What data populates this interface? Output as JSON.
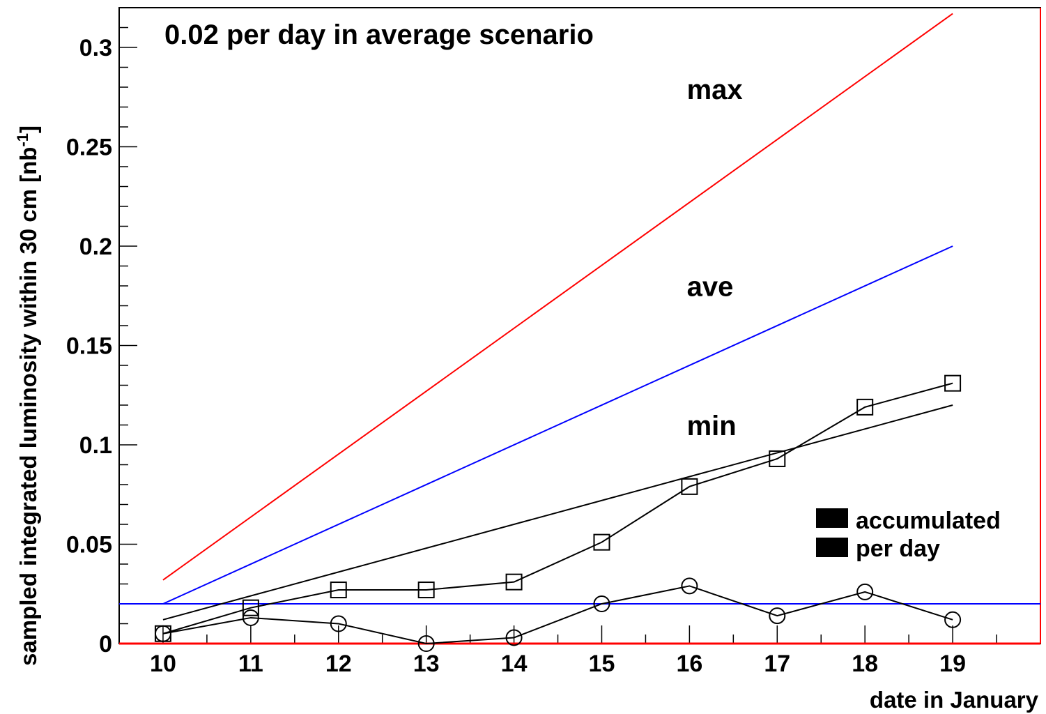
{
  "chart_data": {
    "type": "line",
    "title": "0.02 per day in average scenario",
    "xlabel": "date in January",
    "ylabel": "sampled integrated luminosity within 30 cm [nb",
    "ylabel_sup": "-1",
    "ylabel_close": "]",
    "xlim": [
      9.5,
      20.0
    ],
    "ylim": [
      0,
      0.32
    ],
    "x_ticks": [
      10,
      11,
      12,
      13,
      14,
      15,
      16,
      17,
      18,
      19
    ],
    "y_ticks": [
      0,
      0.05,
      0.1,
      0.15,
      0.2,
      0.25,
      0.3
    ],
    "y_tick_labels": [
      "0",
      "0.05",
      "0.1",
      "0.15",
      "0.2",
      "0.25",
      "0.3"
    ],
    "grid": false,
    "series": [
      {
        "name": "max",
        "color": "#ff0000",
        "x": [
          10,
          19
        ],
        "y": [
          0.032,
          0.317
        ]
      },
      {
        "name": "ave",
        "color": "#0000ff",
        "x": [
          10,
          19
        ],
        "y": [
          0.02,
          0.2
        ]
      },
      {
        "name": "min",
        "color": "#000000",
        "x": [
          10,
          19
        ],
        "y": [
          0.012,
          0.12
        ]
      },
      {
        "name": "accumulated",
        "color": "#000000",
        "marker": "square",
        "x": [
          10,
          11,
          12,
          13,
          14,
          15,
          16,
          17,
          18,
          19
        ],
        "y": [
          0.005,
          0.018,
          0.027,
          0.027,
          0.031,
          0.051,
          0.079,
          0.093,
          0.119,
          0.131
        ]
      },
      {
        "name": "per day",
        "color": "#000000",
        "marker": "circle",
        "x": [
          10,
          11,
          12,
          13,
          14,
          15,
          16,
          17,
          18,
          19
        ],
        "y": [
          0.005,
          0.013,
          0.01,
          0.0,
          0.003,
          0.02,
          0.029,
          0.014,
          0.026,
          0.012
        ]
      }
    ],
    "reference_lines": [
      {
        "color": "#0000ff",
        "y": 0.02
      },
      {
        "color": "#ff0000",
        "y": 0.0
      }
    ],
    "annotations": [
      {
        "text": "max",
        "x": 15.97,
        "y": 0.274
      },
      {
        "text": "ave",
        "x": 15.97,
        "y": 0.175
      },
      {
        "text": "min",
        "x": 15.97,
        "y": 0.105
      }
    ],
    "legend": {
      "position": "bottom-right",
      "entries": [
        "accumulated",
        "per day"
      ]
    }
  }
}
